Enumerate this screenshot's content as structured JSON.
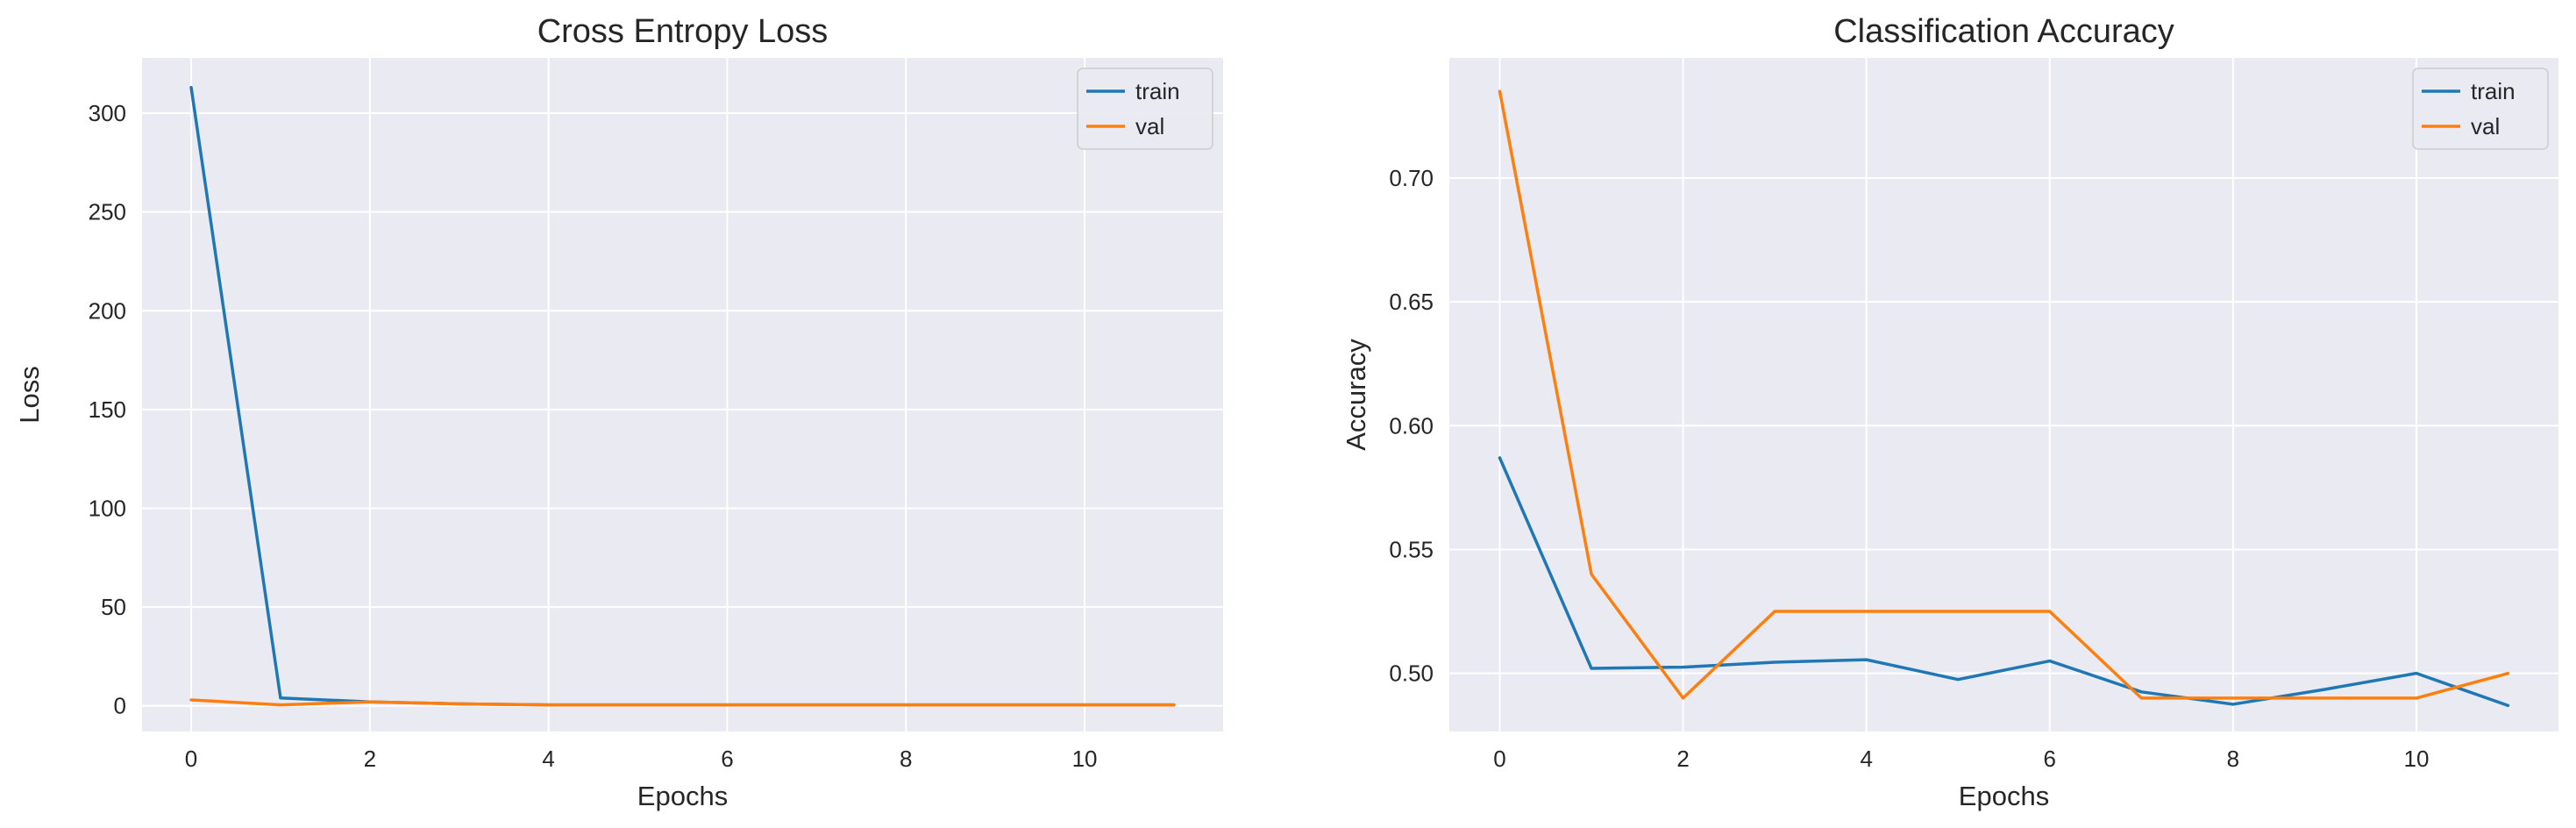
{
  "colors": {
    "train": "#1f77b4",
    "val": "#ff7f0e",
    "background": "#eaeaf2",
    "grid": "#ffffff"
  },
  "chart_data": [
    {
      "type": "line",
      "title": "Cross Entropy Loss",
      "xlabel": "Epochs",
      "ylabel": "Loss",
      "x": [
        0,
        1,
        2,
        3,
        4,
        5,
        6,
        7,
        8,
        9,
        10,
        11
      ],
      "xlim": [
        -0.55,
        11.55
      ],
      "ylim": [
        -13,
        328
      ],
      "xticks": [
        0,
        2,
        4,
        6,
        8,
        10
      ],
      "yticks": [
        0,
        50,
        100,
        150,
        200,
        250,
        300
      ],
      "grid": true,
      "legend_position": "upper right",
      "series": [
        {
          "name": "train",
          "values": [
            313,
            4,
            2,
            1,
            0.5,
            0.5,
            0.5,
            0.5,
            0.5,
            0.5,
            0.5,
            0.5
          ]
        },
        {
          "name": "val",
          "values": [
            3,
            0.5,
            2,
            1,
            0.5,
            0.5,
            0.5,
            0.5,
            0.5,
            0.5,
            0.5,
            0.5
          ]
        }
      ]
    },
    {
      "type": "line",
      "title": "Classification Accuracy",
      "xlabel": "Epochs",
      "ylabel": "Accuracy",
      "x": [
        0,
        1,
        2,
        3,
        4,
        5,
        6,
        7,
        8,
        9,
        10,
        11
      ],
      "xlim": [
        -0.55,
        11.55
      ],
      "ylim": [
        0.4765,
        0.7485
      ],
      "xticks": [
        0,
        2,
        4,
        6,
        8,
        10
      ],
      "yticks": [
        0.5,
        0.55,
        0.6,
        0.65,
        0.7
      ],
      "ytick_labels": [
        "0.50",
        "0.55",
        "0.60",
        "0.65",
        "0.70"
      ],
      "grid": true,
      "legend_position": "upper right",
      "series": [
        {
          "name": "train",
          "values": [
            0.587,
            0.502,
            0.5025,
            0.5045,
            0.5055,
            0.4975,
            0.505,
            0.4925,
            0.4875,
            0.4935,
            0.5,
            0.487
          ]
        },
        {
          "name": "val",
          "values": [
            0.735,
            0.54,
            0.49,
            0.525,
            0.525,
            0.525,
            0.525,
            0.49,
            0.49,
            0.49,
            0.49,
            0.5
          ]
        }
      ]
    }
  ]
}
